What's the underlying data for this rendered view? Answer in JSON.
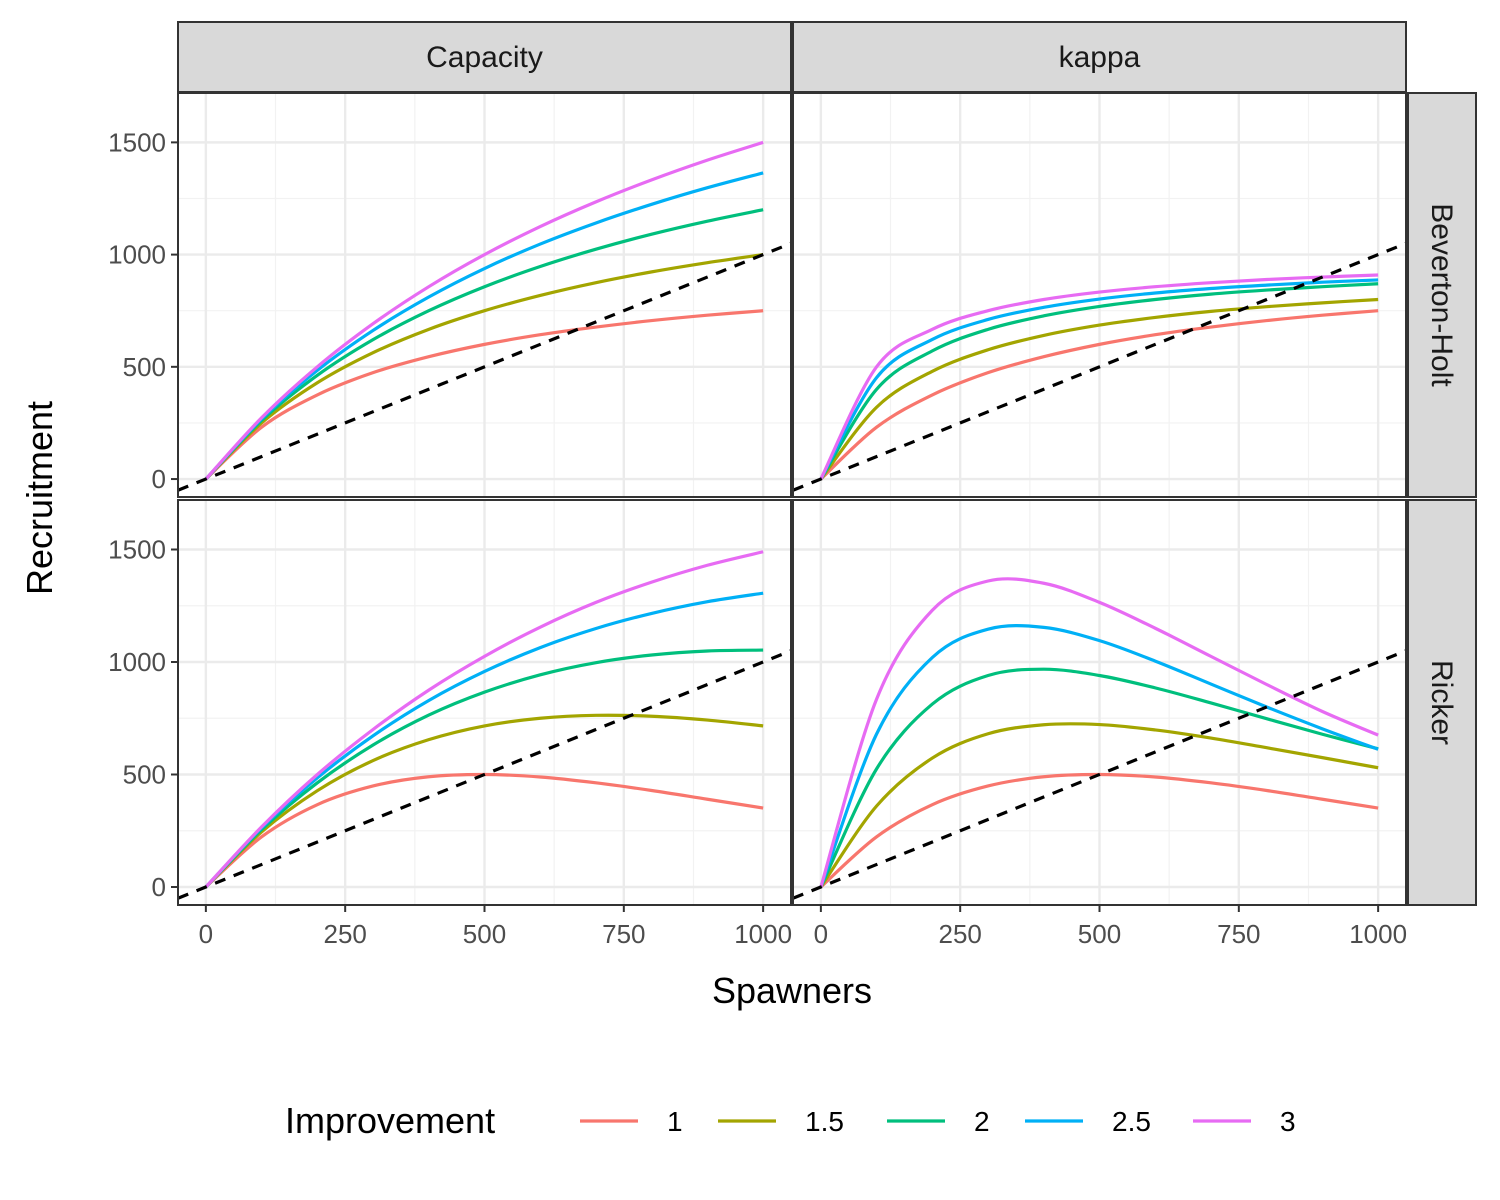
{
  "chart_data": {
    "type": "line",
    "facet_columns": [
      "Capacity",
      "kappa"
    ],
    "facet_rows": [
      "Beverton-Holt",
      "Ricker"
    ],
    "xlabel": "Spawners",
    "ylabel": "Recruitment",
    "xlim": [
      -50,
      1050
    ],
    "ylim": [
      -80,
      1720
    ],
    "x_ticks": [
      "0",
      "250",
      "500",
      "750",
      "1000"
    ],
    "y_ticks": [
      "0",
      "500",
      "1000",
      "1500"
    ],
    "grid": true,
    "legend": {
      "title": "Improvement",
      "position": "bottom",
      "entries": [
        "1",
        "1.5",
        "2",
        "2.5",
        "3"
      ]
    },
    "series_colors": {
      "1": "#F8766D",
      "1.5": "#A3A500",
      "2": "#00BF7D",
      "2.5": "#00B0F6",
      "3": "#E76BF3"
    },
    "x": [
      0,
      100,
      200,
      300,
      400,
      500,
      600,
      700,
      800,
      900,
      1000
    ],
    "reference_line": {
      "style": "dashed",
      "color": "#000000",
      "x": [
        -50,
        1050
      ],
      "y": [
        -50,
        1050
      ]
    },
    "panels": [
      {
        "column": "Capacity",
        "row": "Beverton-Holt",
        "series": [
          {
            "name": "1",
            "values": [
              0,
              231,
              375,
              474,
              545,
              600,
              643,
              677,
              706,
              730,
              750
            ]
          },
          {
            "name": "1.5",
            "values": [
              0,
              250,
              429,
              563,
              667,
              750,
              818,
              875,
              923,
              964,
              1000
            ]
          },
          {
            "name": "2",
            "values": [
              0,
              261,
              462,
              621,
              750,
              857,
              947,
              1024,
              1091,
              1149,
              1200
            ]
          },
          {
            "name": "2.5",
            "values": [
              0,
              268,
              484,
              662,
              811,
              938,
              1047,
              1141,
              1224,
              1298,
              1364
            ]
          },
          {
            "name": "3",
            "values": [
              0,
              273,
              500,
              692,
              857,
              1000,
              1125,
              1235,
              1333,
              1421,
              1500
            ]
          }
        ]
      },
      {
        "column": "kappa",
        "row": "Beverton-Holt",
        "series": [
          {
            "name": "1",
            "values": [
              0,
              231,
              375,
              474,
              545,
              600,
              643,
              677,
              706,
              730,
              750
            ]
          },
          {
            "name": "1.5",
            "values": [
              0,
              320,
              480,
              576,
              640,
              686,
              720,
              747,
              768,
              785,
              800
            ]
          },
          {
            "name": "2",
            "values": [
              0,
              400,
              571,
              667,
              727,
              769,
              800,
              824,
              842,
              857,
              870
            ]
          },
          {
            "name": "2.5",
            "values": [
              0,
              452,
              622,
              711,
              765,
              802,
              829,
              849,
              864,
              877,
              887
            ]
          },
          {
            "name": "3",
            "values": [
              0,
              500,
              667,
              750,
              800,
              833,
              857,
              875,
              889,
              900,
              909
            ]
          }
        ]
      },
      {
        "column": "Capacity",
        "row": "Ricker",
        "series": [
          {
            "name": "1",
            "values": [
              0,
              223,
              366,
              449,
              490,
              500,
              489,
              463,
              429,
              390,
              351
            ]
          },
          {
            "name": "1.5",
            "values": [
              0,
              245,
              428,
              562,
              655,
              716,
              750,
              763,
              759,
              742,
              716
            ]
          },
          {
            "name": "2",
            "values": [
              0,
              255,
              463,
              631,
              764,
              866,
              943,
              997,
              1031,
              1049,
              1053
            ]
          },
          {
            "name": "2.5",
            "values": [
              0,
              263,
              485,
              672,
              829,
              958,
              1064,
              1149,
              1216,
              1268,
              1306
            ]
          },
          {
            "name": "3",
            "values": [
              0,
              267,
              500,
              700,
              875,
              1025,
              1155,
              1265,
              1355,
              1430,
              1490
            ]
          }
        ]
      },
      {
        "column": "kappa",
        "row": "Ricker",
        "series": [
          {
            "name": "1",
            "values": [
              0,
              223,
              366,
              449,
              490,
              500,
              489,
              463,
              429,
              390,
              351
            ]
          },
          {
            "name": "1.5",
            "values": [
              0,
              360,
              573,
              681,
              721,
              722,
              698,
              662,
              619,
              575,
              530
            ]
          },
          {
            "name": "2",
            "values": [
              0,
              525,
              813,
              940,
              968,
              940,
              885,
              818,
              748,
              679,
              614
            ]
          },
          {
            "name": "2.5",
            "values": [
              0,
              680,
              1020,
              1146,
              1154,
              1095,
              1004,
              902,
              800,
              703,
              612
            ]
          },
          {
            "name": "3",
            "values": [
              0,
              835,
              1230,
              1360,
              1350,
              1265,
              1150,
              1025,
              900,
              780,
              675
            ]
          }
        ]
      }
    ]
  }
}
